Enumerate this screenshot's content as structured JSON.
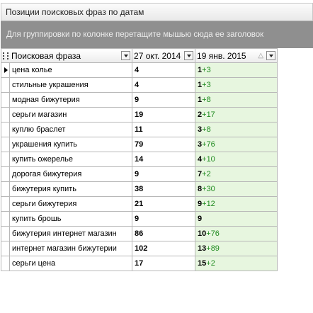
{
  "panel": {
    "title": "Позиции поисковых фраз по датам",
    "group_hint": "Для группировки по колонке перетащите мышью сюда ее заголовок"
  },
  "columns": {
    "phrase": "Поисковая фраза",
    "date1": "27 окт. 2014",
    "date2": "19 янв. 2015"
  },
  "colors": {
    "position_cell_bg": "#e7f6df",
    "delta_text": "#1e8a1e",
    "group_panel_bg": "#8f8f8f"
  },
  "current_row_index": 0,
  "rows": [
    {
      "phrase": "цена колье",
      "pos1": "4",
      "pos2": "1",
      "delta": "+3"
    },
    {
      "phrase": "стильные украшения",
      "pos1": "4",
      "pos2": "1",
      "delta": "+3"
    },
    {
      "phrase": "модная бижутерия",
      "pos1": "9",
      "pos2": "1",
      "delta": "+8"
    },
    {
      "phrase": "серьги магазин",
      "pos1": "19",
      "pos2": "2",
      "delta": "+17"
    },
    {
      "phrase": "куплю браслет",
      "pos1": "11",
      "pos2": "3",
      "delta": "+8"
    },
    {
      "phrase": "украшения купить",
      "pos1": "79",
      "pos2": "3",
      "delta": "+76"
    },
    {
      "phrase": "купить ожерелье",
      "pos1": "14",
      "pos2": "4",
      "delta": "+10"
    },
    {
      "phrase": "дорогая бижутерия",
      "pos1": "9",
      "pos2": "7",
      "delta": "+2"
    },
    {
      "phrase": "бижутерия купить",
      "pos1": "38",
      "pos2": "8",
      "delta": "+30"
    },
    {
      "phrase": "серьги бижутерия",
      "pos1": "21",
      "pos2": "9",
      "delta": "+12"
    },
    {
      "phrase": "купить брошь",
      "pos1": "9",
      "pos2": "9",
      "delta": ""
    },
    {
      "phrase": "бижутерия интернет магазин",
      "pos1": "86",
      "pos2": "10",
      "delta": "+76"
    },
    {
      "phrase": "интернет магазин бижутерии",
      "pos1": "102",
      "pos2": "13",
      "delta": "+89"
    },
    {
      "phrase": "серьги цена",
      "pos1": "17",
      "pos2": "15",
      "delta": "+2"
    }
  ]
}
